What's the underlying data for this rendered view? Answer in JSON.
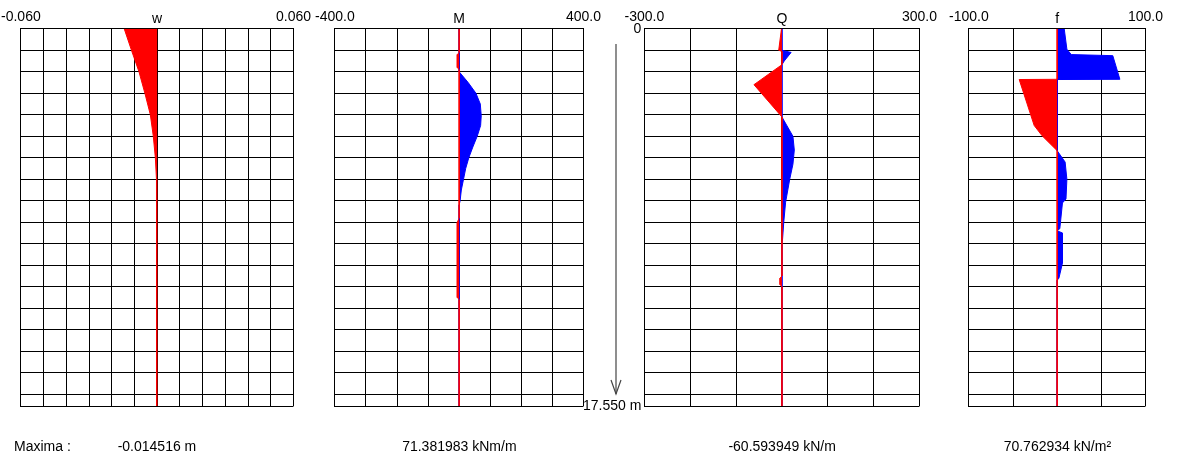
{
  "chart_data": [
    {
      "type": "area",
      "orientation": "horizontal",
      "title": "w",
      "annotations": [
        "Maxima :",
        "-0.014516 m"
      ],
      "xlim": [
        -0.06,
        0.06
      ],
      "xticks": [
        {
          "value": -0.06,
          "label": "-0.060"
        },
        {
          "value": -0.05,
          "label": null
        },
        {
          "value": -0.04,
          "label": null
        },
        {
          "value": -0.03,
          "label": null
        },
        {
          "value": -0.02,
          "label": null
        },
        {
          "value": -0.01,
          "label": null
        },
        {
          "value": 0,
          "label": null
        },
        {
          "value": 0.01,
          "label": null
        },
        {
          "value": 0.02,
          "label": null
        },
        {
          "value": 0.03,
          "label": null
        },
        {
          "value": 0.04,
          "label": null
        },
        {
          "value": 0.05,
          "label": null
        },
        {
          "value": 0.06,
          "label": "0.060"
        }
      ],
      "ylim": [
        17.55,
        0
      ],
      "yticks": [
        {
          "value": 0,
          "label": null
        },
        {
          "value": 1,
          "label": null
        },
        {
          "value": 2,
          "label": null
        },
        {
          "value": 3,
          "label": null
        },
        {
          "value": 4,
          "label": null
        },
        {
          "value": 5,
          "label": null
        },
        {
          "value": 6,
          "label": null
        },
        {
          "value": 7,
          "label": null
        },
        {
          "value": 8,
          "label": null
        },
        {
          "value": 9,
          "label": null
        },
        {
          "value": 10,
          "label": null
        },
        {
          "value": 11,
          "label": null
        },
        {
          "value": 12,
          "label": null
        },
        {
          "value": 13,
          "label": null
        },
        {
          "value": 14,
          "label": null
        },
        {
          "value": 15,
          "label": null
        },
        {
          "value": 16,
          "label": null
        },
        {
          "value": 17,
          "label": null
        },
        {
          "value": 17.55,
          "label": null
        }
      ],
      "grid": true,
      "tick_labels": "x",
      "series": [
        {
          "color": "#ff0000",
          "x": [
            0,
            1,
            2,
            3,
            4,
            5,
            6,
            7,
            8,
            17.55
          ],
          "values": [
            -0.0145,
            -0.0113,
            -0.008,
            -0.0054,
            -0.003,
            -0.0017,
            -0.0008,
            -0.0003,
            -0.0002,
            -0.0002
          ]
        }
      ]
    },
    {
      "type": "area",
      "orientation": "horizontal",
      "title": "M",
      "annotations": [
        "71.381983 kNm/m"
      ],
      "xlim": [
        -400,
        400
      ],
      "xticks": [
        {
          "value": -400,
          "label": "-400.0"
        },
        {
          "value": -300,
          "label": null
        },
        {
          "value": -200,
          "label": null
        },
        {
          "value": -100,
          "label": null
        },
        {
          "value": 0,
          "label": null
        },
        {
          "value": 100,
          "label": null
        },
        {
          "value": 200,
          "label": null
        },
        {
          "value": 300,
          "label": null
        },
        {
          "value": 400,
          "label": "400.0"
        }
      ],
      "ylim": [
        17.55,
        0
      ],
      "yticks": [
        {
          "value": 0,
          "label": null
        },
        {
          "value": 1,
          "label": null
        },
        {
          "value": 2,
          "label": null
        },
        {
          "value": 3,
          "label": null
        },
        {
          "value": 4,
          "label": null
        },
        {
          "value": 5,
          "label": null
        },
        {
          "value": 6,
          "label": null
        },
        {
          "value": 7,
          "label": null
        },
        {
          "value": 8,
          "label": null
        },
        {
          "value": 9,
          "label": null
        },
        {
          "value": 10,
          "label": null
        },
        {
          "value": 11,
          "label": null
        },
        {
          "value": 12,
          "label": null
        },
        {
          "value": 13,
          "label": null
        },
        {
          "value": 14,
          "label": null
        },
        {
          "value": 15,
          "label": null
        },
        {
          "value": 16,
          "label": null
        },
        {
          "value": 17,
          "label": null
        },
        {
          "value": 17.55,
          "label": null
        }
      ],
      "grid": true,
      "tick_labels": "x",
      "series": [
        {
          "color": "#ff0000",
          "x": [
            0,
            1.1,
            1.2,
            1.8,
            1.9,
            8.8,
            9,
            12.5,
            12.6,
            17.55
          ],
          "values": [
            0,
            0,
            -6,
            -6,
            0,
            0,
            -6,
            -6,
            0,
            0
          ]
        },
        {
          "color": "#0000ff",
          "x": [
            0,
            2,
            2.5,
            3,
            3.5,
            4.05,
            4.5,
            5,
            5.5,
            6,
            6.5,
            7,
            7.5,
            8,
            8.2,
            17.55
          ],
          "values": [
            0,
            0,
            29,
            54,
            68,
            71,
            69,
            58,
            44,
            31,
            21,
            14,
            7,
            3,
            0,
            0
          ]
        }
      ]
    },
    {
      "type": "area",
      "orientation": "horizontal",
      "title": "Q",
      "annotations": [
        "-60.593949 kN/m"
      ],
      "xlim": [
        -300,
        300
      ],
      "xticks": [
        {
          "value": -300,
          "label": "-300.0"
        },
        {
          "value": -200,
          "label": null
        },
        {
          "value": -100,
          "label": null
        },
        {
          "value": 0,
          "label": null
        },
        {
          "value": 100,
          "label": null
        },
        {
          "value": 200,
          "label": null
        },
        {
          "value": 300,
          "label": "300.0"
        }
      ],
      "ylim": [
        17.55,
        0
      ],
      "yticks": [
        {
          "value": 0,
          "label": "0"
        },
        {
          "value": 1,
          "label": null
        },
        {
          "value": 2,
          "label": null
        },
        {
          "value": 3,
          "label": null
        },
        {
          "value": 4,
          "label": null
        },
        {
          "value": 5,
          "label": null
        },
        {
          "value": 6,
          "label": null
        },
        {
          "value": 7,
          "label": null
        },
        {
          "value": 8,
          "label": null
        },
        {
          "value": 9,
          "label": null
        },
        {
          "value": 10,
          "label": null
        },
        {
          "value": 11,
          "label": null
        },
        {
          "value": 12,
          "label": null
        },
        {
          "value": 13,
          "label": null
        },
        {
          "value": 14,
          "label": null
        },
        {
          "value": 15,
          "label": null
        },
        {
          "value": 16,
          "label": null
        },
        {
          "value": 17,
          "label": null
        },
        {
          "value": 17.55,
          "label": "17.550 m"
        }
      ],
      "grid": true,
      "series": [
        {
          "color": "#ff0000",
          "x": [
            0,
            1,
            1.05,
            1.67,
            2.6,
            4.1,
            11.5,
            11.6,
            11.9,
            12,
            17.55
          ],
          "values": [
            -1,
            -7,
            0,
            0,
            -61,
            0,
            0,
            -4,
            -4,
            0,
            0
          ]
        },
        {
          "color": "#0000ff",
          "x": [
            0,
            1,
            1.1,
            1.5,
            1.67,
            4.1,
            5,
            5.64,
            6.3,
            7,
            8.07,
            9,
            9.9,
            10,
            17.55
          ],
          "values": [
            0,
            0,
            20,
            5,
            0,
            0,
            24,
            27,
            24,
            17,
            8,
            4,
            1,
            0,
            0
          ]
        }
      ]
    },
    {
      "type": "area",
      "orientation": "horizontal",
      "title": "f",
      "annotations": [
        "70.762934 kN/m²"
      ],
      "xlim": [
        -100,
        100
      ],
      "xticks": [
        {
          "value": -100,
          "label": "-100.0"
        },
        {
          "value": -50,
          "label": null
        },
        {
          "value": 0,
          "label": null
        },
        {
          "value": 50,
          "label": null
        },
        {
          "value": 100,
          "label": "100.0"
        }
      ],
      "ylim": [
        17.55,
        0
      ],
      "yticks": [
        {
          "value": 0,
          "label": null
        },
        {
          "value": 1,
          "label": null
        },
        {
          "value": 2,
          "label": null
        },
        {
          "value": 3,
          "label": null
        },
        {
          "value": 4,
          "label": null
        },
        {
          "value": 5,
          "label": null
        },
        {
          "value": 6,
          "label": null
        },
        {
          "value": 7,
          "label": null
        },
        {
          "value": 8,
          "label": null
        },
        {
          "value": 9,
          "label": null
        },
        {
          "value": 10,
          "label": null
        },
        {
          "value": 11,
          "label": null
        },
        {
          "value": 12,
          "label": null
        },
        {
          "value": 13,
          "label": null
        },
        {
          "value": 14,
          "label": null
        },
        {
          "value": 15,
          "label": null
        },
        {
          "value": 16,
          "label": null
        },
        {
          "value": 17,
          "label": null
        },
        {
          "value": 17.55,
          "label": null
        }
      ],
      "grid": true,
      "tick_labels": "x",
      "series": [
        {
          "color": "#ff0000",
          "x": [
            0,
            2.35,
            2.36,
            4.5,
            4.98,
            5.67,
            17.55
          ],
          "values": [
            0,
            0,
            -43,
            -26,
            -17,
            0,
            0
          ]
        },
        {
          "color": "#0000ff",
          "x": [
            0,
            0.95,
            1.2,
            1.25,
            2.35,
            2.36,
            5.67,
            6.2,
            7,
            7.92,
            8.1,
            9.3,
            9.4,
            9.5,
            10.9,
            11.6,
            11.7,
            17.55
          ],
          "values": [
            8,
            11,
            16,
            63,
            71,
            0,
            0,
            9,
            11,
            10,
            6,
            3,
            0,
            6,
            6,
            2,
            0,
            0
          ]
        }
      ]
    }
  ]
}
